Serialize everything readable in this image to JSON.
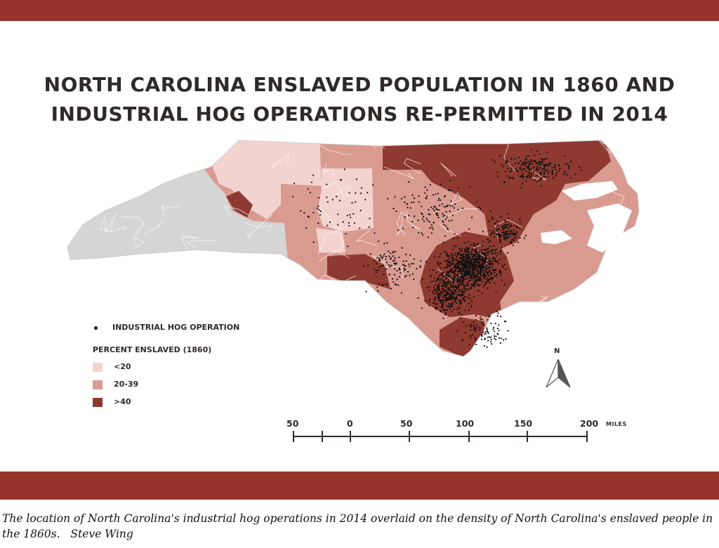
{
  "map": {
    "title_line1": "NORTH CAROLINA ENSLAVED POPULATION IN 1860 AND",
    "title_line2": "INDUSTRIAL HOG OPERATIONS RE-PERMITTED IN 2014",
    "legend": {
      "point_label": "INDUSTRIAL HOG OPERATION",
      "heading": "PERCENT ENSLAVED (1860)",
      "classes": [
        {
          "label": "<20",
          "color": "#f3d3d0"
        },
        {
          "label": "20-39",
          "color": "#d99a90"
        },
        {
          "label": ">40",
          "color": "#8e3a30"
        }
      ]
    },
    "no_data_color": "#d5d5d5",
    "border_band_color": "#96342b",
    "scale_bar": {
      "ticks": [
        "50",
        "0",
        "50",
        "100",
        "150",
        "200"
      ],
      "units": "MILES"
    },
    "north_arrow": "N"
  },
  "caption": {
    "text": "The location of North Carolina's industrial hog operations in 2014 overlaid on the density of North Carolina's enslaved people in the 1860s.",
    "credit": "Steve Wing"
  }
}
